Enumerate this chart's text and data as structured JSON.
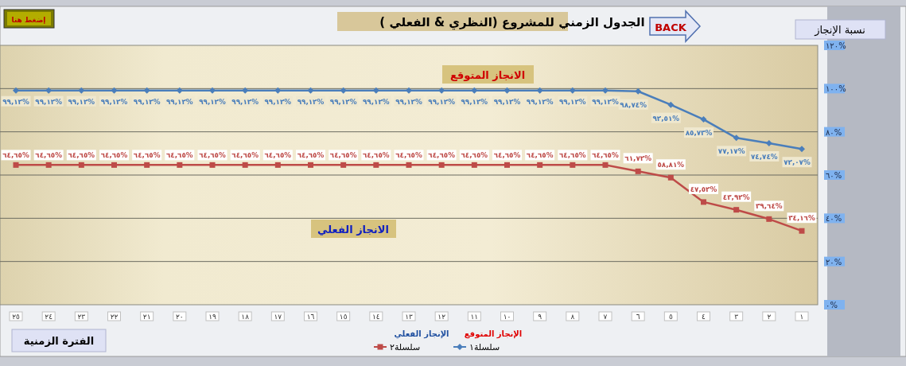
{
  "chart_data": {
    "type": "line",
    "title": "الجدول الزمني للمشروع (النظري & الفعلي )",
    "xlabel": "الفترة الزمنية",
    "ylabel": "نسبة الإنجاز",
    "categories": [
      "٢٥",
      "٢٤",
      "٢٣",
      "٢٢",
      "٢١",
      "٢٠",
      "١٩",
      "١٨",
      "١٧",
      "١٦",
      "١٥",
      "١٤",
      "١٣",
      "١٢",
      "١١",
      "١٠",
      "٩",
      "٨",
      "٧",
      "٦",
      "٥",
      "٤",
      "٣",
      "٢",
      "١"
    ],
    "ylim": [
      0,
      120
    ],
    "yticks": [
      {
        "value": 0,
        "label": "٠%"
      },
      {
        "value": 20,
        "label": "٢٠%"
      },
      {
        "value": 40,
        "label": "٤٠%"
      },
      {
        "value": 60,
        "label": "٦٠%"
      },
      {
        "value": 80,
        "label": "٨٠%"
      },
      {
        "value": 100,
        "label": "١٠٠%"
      },
      {
        "value": 120,
        "label": "١٢٠%"
      }
    ],
    "grid": "y",
    "legend": "bottom",
    "series": [
      {
        "name": "سلسلة١",
        "color": "#4a7ebb",
        "marker": "diamond",
        "values": [
          99.12,
          99.12,
          99.12,
          99.12,
          99.12,
          99.12,
          99.12,
          99.12,
          99.12,
          99.12,
          99.12,
          99.12,
          99.12,
          99.12,
          99.12,
          99.12,
          99.12,
          99.12,
          99.12,
          98.74,
          92.51,
          85.73,
          77.17,
          74.74,
          72.07
        ],
        "value_labels": [
          "٩٩,١٢%",
          "٩٩,١٢%",
          "٩٩,١٢%",
          "٩٩,١٢%",
          "٩٩,١٢%",
          "٩٩,١٢%",
          "٩٩,١٢%",
          "٩٩,١٢%",
          "٩٩,١٢%",
          "٩٩,١٢%",
          "٩٩,١٢%",
          "٩٩,١٢%",
          "٩٩,١٢%",
          "٩٩,١٢%",
          "٩٩,١٢%",
          "٩٩,١٢%",
          "٩٩,١٢%",
          "٩٩,١٢%",
          "٩٩,١٢%",
          "٩٨,٧٤%",
          "٩٢,٥١%",
          "٨٥,٧٣%",
          "٧٧,١٧%",
          "٧٤,٧٤%",
          "٧٢,٠٧%"
        ]
      },
      {
        "name": "سلسلة٢",
        "color": "#be4b48",
        "marker": "square",
        "values": [
          64.65,
          64.65,
          64.65,
          64.65,
          64.65,
          64.65,
          64.65,
          64.65,
          64.65,
          64.65,
          64.65,
          64.65,
          64.65,
          64.65,
          64.65,
          64.65,
          64.65,
          64.65,
          64.65,
          61.72,
          58.81,
          47.52,
          43.92,
          39.64,
          34.16
        ],
        "value_labels": [
          "٦٤,٦٥%",
          "٦٤,٦٥%",
          "٦٤,٦٥%",
          "٦٤,٦٥%",
          "٦٤,٦٥%",
          "٦٤,٦٥%",
          "٦٤,٦٥%",
          "٦٤,٦٥%",
          "٦٤,٦٥%",
          "٦٤,٦٥%",
          "٦٤,٦٥%",
          "٦٤,٦٥%",
          "٦٤,٦٥%",
          "٦٤,٦٥%",
          "٦٤,٦٥%",
          "٦٤,٦٥%",
          "٦٤,٦٥%",
          "٦٤,٦٥%",
          "٦٤,٦٥%",
          "٦١,٧٢%",
          "٥٨,٨١%",
          "٤٧,٥٢%",
          "٤٣,٩٢%",
          "٣٩,٦٤%",
          "٣٤,١٦%"
        ]
      }
    ],
    "annotations": [
      "إضغط هنا",
      "BACK",
      "الانجاز المتوقع",
      "الانجاز الفعلي",
      "الإنجاز الفعلي",
      "الإنجاز المتوقع"
    ]
  }
}
